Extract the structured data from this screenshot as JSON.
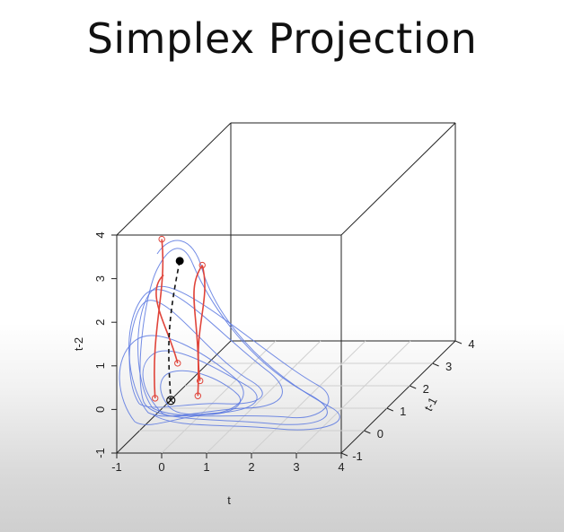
{
  "slide": {
    "title": "Simplex Projection"
  },
  "chart_data": {
    "type": "scatter",
    "projection": "3d",
    "axes": {
      "x": {
        "label": "t",
        "range": [
          -1,
          4
        ],
        "ticks": [
          "-1",
          "0",
          "1",
          "2",
          "3",
          "4"
        ]
      },
      "y": {
        "label": "t-1",
        "range": [
          -1,
          4
        ],
        "ticks": [
          "-1",
          "0",
          "1",
          "2",
          "3",
          "4"
        ]
      },
      "z": {
        "label": "t-2",
        "range": [
          -1,
          4
        ],
        "ticks": [
          "-1",
          "0",
          "1",
          "2",
          "3",
          "4"
        ]
      }
    },
    "grid": "floor",
    "colors": {
      "attractor": "#5b78e0",
      "neighbors": "#e0443a",
      "target": "#000000"
    },
    "target_point": {
      "x": 0.2,
      "y": -0.6,
      "z": 3.2
    },
    "projected_point": {
      "x": -0.1,
      "y": -0.4,
      "z": -0.1
    },
    "neighbor_points": [
      {
        "x": -0.2,
        "y": -0.6,
        "z": 3.7
      },
      {
        "x": 0.6,
        "y": -0.4,
        "z": 3.0
      },
      {
        "x": -0.4,
        "y": -0.5,
        "z": 0.0
      },
      {
        "x": 0.4,
        "y": -0.2,
        "z": -0.1
      },
      {
        "x": 0.6,
        "y": -0.5,
        "z": 0.4
      },
      {
        "x": 0.0,
        "y": -0.3,
        "z": 0.7
      }
    ]
  }
}
